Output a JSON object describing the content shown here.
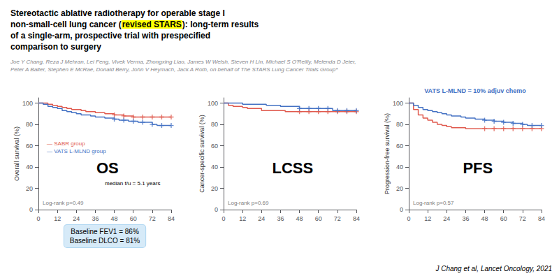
{
  "chart_data": [
    {
      "type": "step",
      "title": "Stereotactic ablative radiotherapy for operable stage I\nnon-small-cell lung cancer (revised STARS): long-term results\nof a single-arm, prospective trial with prespecified\ncomparison to surgery",
      "title_highlight": {
        "text": "revised STARS",
        "color": "#ffff00"
      },
      "subtitle": "Joe Y Chang, Reza J Mehran, Lei Feng, Vivek Verma, Zhongxing Liao, James W Welsh, Steven H Lin, Michael S O'Reilly, Melenda D Jeter,\nPeter A Balter, Stephen E McRae, Donald Berry, John V Heymach, Jack A Roth, on behalf of The STARS Lung Cancer Trials Group*",
      "y_label": "Overall survival (%)",
      "xlim": [
        0,
        84
      ],
      "xticks": [
        0,
        12,
        24,
        36,
        48,
        60,
        72,
        84
      ],
      "ylim": [
        0,
        105
      ],
      "yticks": [
        0,
        20,
        40,
        60,
        80,
        100
      ],
      "grid": false,
      "legend": "lower left",
      "annotations": [
        {
          "text": "OS"
        },
        {
          "text": "Log-rank p=0.49"
        },
        {
          "text": "median f/u = 5.1 years"
        },
        {
          "text": "Baseline FEV1 = 86%\nBaseline DLCO = 81%"
        },
        {
          "text": "J Chang et al, Lancet Oncology, 2021"
        }
      ],
      "series": [
        {
          "name": "— SABR group",
          "color": "#e05a4e",
          "marker": "+",
          "x": [
            0,
            3,
            6,
            9,
            12,
            15,
            18,
            21,
            24,
            27,
            30,
            33,
            36,
            39,
            42,
            45,
            48,
            51,
            54,
            57,
            60,
            63,
            66,
            69,
            72,
            75,
            78,
            81,
            84
          ],
          "values": [
            100,
            100,
            99,
            98,
            97,
            96,
            95,
            94,
            94,
            93,
            92,
            92,
            91,
            91,
            90,
            90,
            89,
            89,
            88,
            88,
            87,
            87,
            87,
            87,
            87,
            87,
            87,
            87,
            87
          ],
          "censor_x": [
            48,
            54,
            60,
            66,
            72,
            78,
            84
          ]
        },
        {
          "name": "— VATS L-MLND group",
          "color": "#4472c4",
          "marker": "+",
          "x": [
            0,
            3,
            6,
            9,
            12,
            15,
            18,
            21,
            24,
            27,
            30,
            33,
            36,
            39,
            42,
            45,
            48,
            51,
            54,
            57,
            60,
            63,
            66,
            69,
            72,
            75,
            78,
            81,
            84
          ],
          "values": [
            100,
            99,
            97,
            96,
            95,
            93,
            92,
            91,
            90,
            89,
            89,
            88,
            87,
            87,
            86,
            86,
            85,
            84,
            84,
            83,
            83,
            82,
            82,
            82,
            80,
            79,
            79,
            79,
            79
          ],
          "censor_x": [
            48,
            54,
            60,
            66,
            72,
            78,
            84
          ]
        }
      ]
    },
    {
      "type": "step",
      "y_label": "Cancer-specific survival (%)",
      "xlim": [
        0,
        84
      ],
      "xticks": [
        0,
        12,
        24,
        36,
        48,
        60,
        72,
        84
      ],
      "ylim": [
        0,
        105
      ],
      "yticks": [
        0,
        20,
        40,
        60,
        80,
        100
      ],
      "grid": false,
      "annotations": [
        {
          "text": "LCSS"
        },
        {
          "text": "Log-rank p=0.69"
        }
      ],
      "series": [
        {
          "name": "— SABR group",
          "color": "#e05a4e",
          "marker": "+",
          "x": [
            0,
            3,
            6,
            9,
            12,
            15,
            18,
            21,
            24,
            27,
            30,
            33,
            36,
            39,
            42,
            45,
            48,
            51,
            54,
            57,
            60,
            63,
            66,
            69,
            72,
            75,
            78,
            81,
            84
          ],
          "values": [
            100,
            98,
            97,
            97,
            96,
            95,
            95,
            95,
            93,
            93,
            93,
            93,
            93,
            92,
            92,
            92,
            92,
            92,
            92,
            92,
            92,
            92,
            92,
            92,
            92,
            92,
            92,
            92,
            92
          ],
          "censor_x": [
            48,
            54,
            60,
            66,
            72,
            78,
            84
          ]
        },
        {
          "name": "— VATS L-MLND group",
          "color": "#4472c4",
          "marker": "+",
          "x": [
            0,
            3,
            6,
            9,
            12,
            15,
            18,
            21,
            24,
            27,
            30,
            33,
            36,
            39,
            42,
            45,
            48,
            51,
            54,
            57,
            60,
            63,
            66,
            69,
            72,
            75,
            78,
            81,
            84
          ],
          "values": [
            100,
            100,
            100,
            100,
            99,
            99,
            99,
            99,
            99,
            98,
            98,
            98,
            97,
            97,
            97,
            97,
            95,
            95,
            95,
            95,
            95,
            95,
            95,
            93,
            93,
            93,
            93,
            93,
            93
          ],
          "censor_x": [
            48,
            54,
            60,
            66,
            72,
            78,
            84
          ]
        }
      ]
    },
    {
      "type": "step",
      "y_label": "Progression-free survival (%)",
      "xlim": [
        0,
        84
      ],
      "xticks": [
        0,
        12,
        24,
        36,
        48,
        60,
        72,
        84
      ],
      "ylim": [
        0,
        105
      ],
      "yticks": [
        0,
        20,
        40,
        60,
        80,
        100
      ],
      "grid": false,
      "annotations": [
        {
          "text": "PFS"
        },
        {
          "text": "Log-rank p=0.57"
        },
        {
          "text": "VATS L-MLND = 10% adjuv chemo",
          "color": "#4472c4"
        }
      ],
      "series": [
        {
          "name": "— SABR group",
          "color": "#e05a4e",
          "marker": "+",
          "x": [
            0,
            3,
            6,
            9,
            12,
            15,
            18,
            21,
            24,
            27,
            30,
            33,
            36,
            39,
            42,
            45,
            48,
            51,
            54,
            57,
            60,
            63,
            66,
            69,
            72,
            75,
            78,
            81,
            84
          ],
          "values": [
            100,
            94,
            89,
            86,
            84,
            82,
            80,
            79,
            78,
            77,
            77,
            77,
            76,
            76,
            76,
            76,
            76,
            76,
            76,
            76,
            76,
            76,
            76,
            76,
            76,
            76,
            76,
            76,
            76
          ],
          "censor_x": [
            48,
            54,
            60,
            66,
            72,
            78,
            84
          ]
        },
        {
          "name": "— VATS L-MLND group",
          "color": "#4472c4",
          "marker": "+",
          "x": [
            0,
            3,
            6,
            9,
            12,
            15,
            18,
            21,
            24,
            27,
            30,
            33,
            36,
            39,
            42,
            45,
            48,
            51,
            54,
            57,
            60,
            63,
            66,
            69,
            72,
            75,
            78,
            81,
            84
          ],
          "values": [
            100,
            98,
            96,
            94,
            93,
            92,
            91,
            90,
            89,
            88,
            88,
            87,
            86,
            86,
            85,
            85,
            84,
            84,
            83,
            83,
            82,
            82,
            81,
            81,
            80,
            79,
            79,
            79,
            79
          ],
          "censor_x": [
            48,
            54,
            60,
            66,
            72,
            78,
            84
          ]
        }
      ]
    }
  ]
}
